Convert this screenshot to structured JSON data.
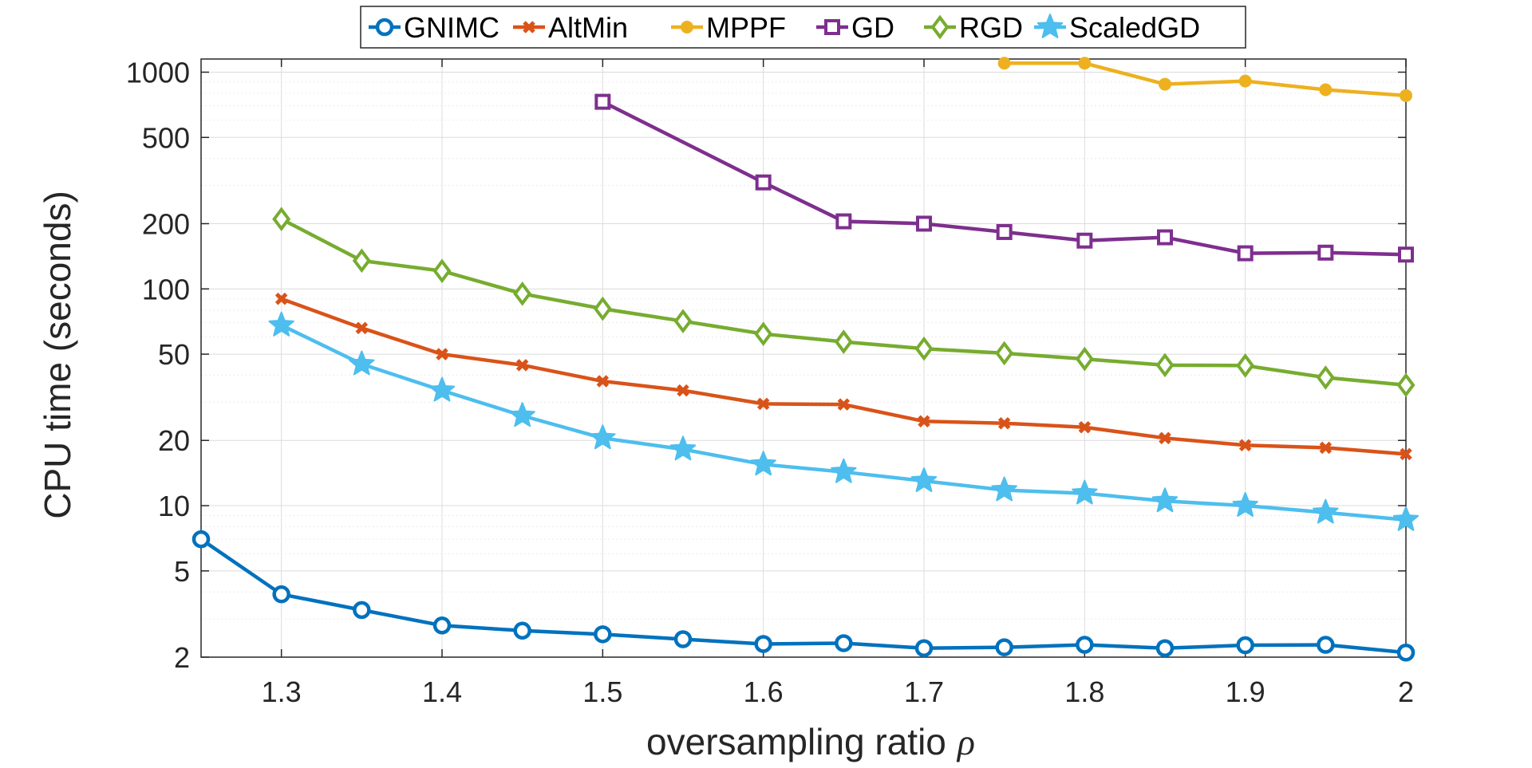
{
  "chart_data": {
    "type": "line",
    "title": "",
    "xlabel": "oversampling ratio",
    "xlabel_symbol": "ρ",
    "ylabel": "CPU time (seconds)",
    "yscale": "log",
    "xlim": [
      1.25,
      2.0
    ],
    "ylim": [
      2,
      1150
    ],
    "x_ticks": [
      1.3,
      1.4,
      1.5,
      1.6,
      1.7,
      1.8,
      1.9,
      2.0
    ],
    "x_tick_labels": [
      "1.3",
      "1.4",
      "1.5",
      "1.6",
      "1.7",
      "1.8",
      "1.9",
      "2"
    ],
    "y_ticks": [
      2,
      5,
      10,
      20,
      50,
      100,
      200,
      500,
      1000
    ],
    "y_tick_labels": [
      "2",
      "5",
      "10",
      "20",
      "50",
      "100",
      "200",
      "500",
      "1000"
    ],
    "grid": true,
    "legend_position": "top",
    "series": [
      {
        "name": "GNIMC",
        "color": "#0072BD",
        "marker": "circle",
        "x": [
          1.25,
          1.3,
          1.35,
          1.4,
          1.45,
          1.5,
          1.55,
          1.6,
          1.65,
          1.7,
          1.75,
          1.8,
          1.85,
          1.9,
          1.95,
          2.0
        ],
        "values": [
          7.0,
          3.9,
          3.3,
          2.8,
          2.65,
          2.55,
          2.42,
          2.3,
          2.32,
          2.2,
          2.22,
          2.28,
          2.2,
          2.27,
          2.28,
          2.1
        ]
      },
      {
        "name": "AltMin",
        "color": "#D95319",
        "marker": "x",
        "x": [
          1.3,
          1.35,
          1.4,
          1.45,
          1.5,
          1.55,
          1.6,
          1.65,
          1.7,
          1.75,
          1.8,
          1.85,
          1.9,
          1.95,
          2.0
        ],
        "values": [
          90,
          66,
          50,
          44.5,
          37.5,
          34,
          29.5,
          29.3,
          24.5,
          24,
          23,
          20.5,
          19,
          18.5,
          17.3
        ]
      },
      {
        "name": "MPPF",
        "color": "#EDB120",
        "marker": "dot",
        "x": [
          1.75,
          1.8,
          1.85,
          1.9,
          1.95,
          2.0
        ],
        "values": [
          1100,
          1100,
          880,
          910,
          830,
          780
        ]
      },
      {
        "name": "GD",
        "color": "#7E2F8E",
        "marker": "square",
        "x": [
          1.5,
          1.6,
          1.65,
          1.7,
          1.75,
          1.8,
          1.85,
          1.9,
          1.95,
          2.0
        ],
        "values": [
          730,
          310,
          205,
          200,
          183,
          167,
          173,
          146,
          147,
          144
        ]
      },
      {
        "name": "RGD",
        "color": "#77AC30",
        "marker": "diamond",
        "x": [
          1.3,
          1.35,
          1.4,
          1.45,
          1.5,
          1.55,
          1.6,
          1.65,
          1.7,
          1.75,
          1.8,
          1.85,
          1.9,
          1.95,
          2.0
        ],
        "values": [
          210,
          135,
          121,
          95,
          81,
          71,
          62,
          57,
          53,
          50.5,
          47.5,
          44.5,
          44.3,
          39,
          36
        ]
      },
      {
        "name": "ScaledGD",
        "color": "#4DBEEE",
        "marker": "star",
        "x": [
          1.3,
          1.35,
          1.4,
          1.45,
          1.5,
          1.55,
          1.6,
          1.65,
          1.7,
          1.75,
          1.8,
          1.85,
          1.9,
          1.95,
          2.0
        ],
        "values": [
          68,
          45,
          34,
          26,
          20.5,
          18.2,
          15.5,
          14.3,
          13,
          11.8,
          11.4,
          10.5,
          10,
          9.3,
          8.6
        ]
      }
    ]
  }
}
